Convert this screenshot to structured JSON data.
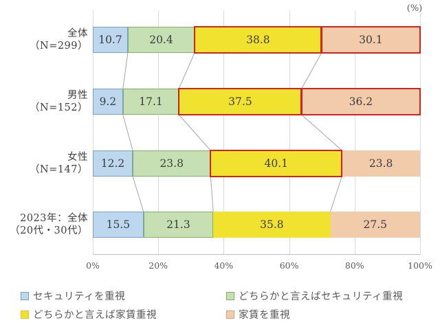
{
  "chart_data": {
    "type": "bar",
    "orientation": "horizontal-stacked",
    "unit": "(%)",
    "title": "",
    "xlabel": "",
    "ylabel": "",
    "xlim": [
      0,
      100
    ],
    "grid": true,
    "legend_position": "bottom",
    "x_ticks": [
      "0%",
      "20%",
      "40%",
      "60%",
      "80%",
      "100%"
    ],
    "x_tick_values": [
      0,
      20,
      40,
      60,
      80,
      100
    ],
    "categories": [
      "全体（N=299）",
      "男性（N=152）",
      "女性（N=147）",
      "2023年：全体（20代・30代）"
    ],
    "category_lines": [
      [
        "全体",
        "（N=299）"
      ],
      [
        "男性",
        "（N=152）"
      ],
      [
        "女性",
        "（N=147）"
      ],
      [
        "2023年：全体",
        "（20代・30代）"
      ]
    ],
    "series": [
      {
        "name": "セキュリティを重視",
        "color": "#BDD7EE",
        "border": "#74A2CC",
        "outlined": true,
        "values": [
          10.7,
          9.2,
          12.2,
          15.5
        ]
      },
      {
        "name": "どちらかと言えばセキュリティ重視",
        "color": "#C6E0B4",
        "border": "#7FB260",
        "outlined": true,
        "values": [
          20.4,
          17.1,
          23.8,
          21.3
        ]
      },
      {
        "name": "どちらかと言えば家賃重視",
        "color": "#F1E22F",
        "border": "#D8C52F",
        "outlined": false,
        "values": [
          38.8,
          37.5,
          40.1,
          35.8
        ]
      },
      {
        "name": "家賃を重視",
        "color": "#F2CBAB",
        "border": "#DD9E76",
        "outlined": false,
        "values": [
          30.1,
          36.2,
          23.8,
          27.5
        ]
      }
    ],
    "highlights": [
      [
        2,
        3
      ],
      [
        2,
        3
      ],
      [
        2
      ],
      []
    ],
    "highlight_color": "#CE241D",
    "grid_color": "#D9D9D9",
    "axis_color": "#BFBFBF",
    "connector_color": "#A6A6A6"
  }
}
